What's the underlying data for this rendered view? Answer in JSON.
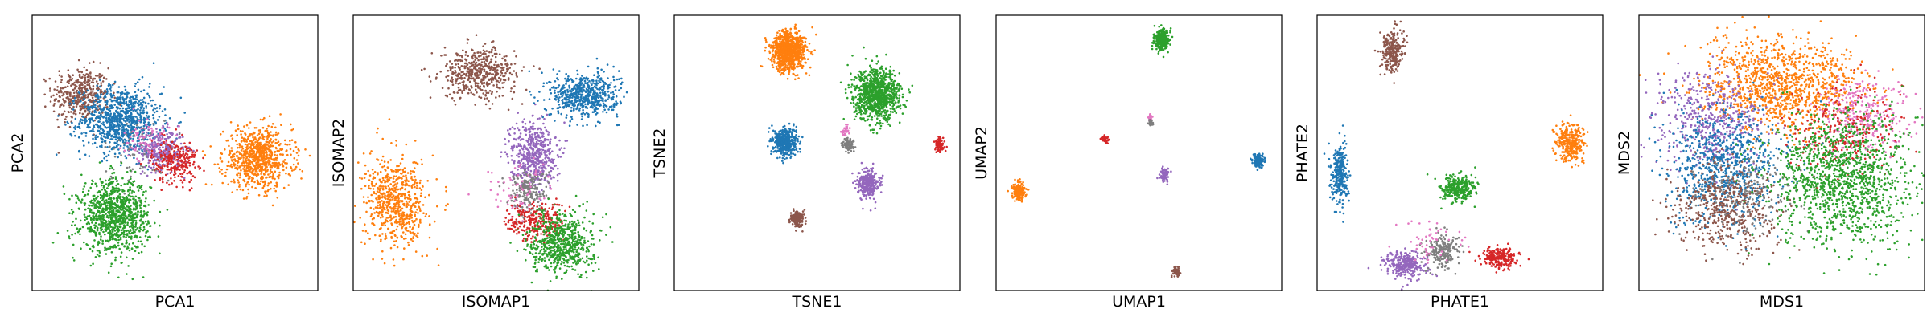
{
  "figure": {
    "colors": [
      "#1f77b4",
      "#ff7f0e",
      "#2ca02c",
      "#d62728",
      "#9467bd",
      "#8c564b",
      "#e377c2",
      "#7f7f7f"
    ]
  },
  "chart_data": [
    {
      "type": "scatter",
      "xlabel": "PCA1",
      "ylabel": "PCA2",
      "xlim": [
        0,
        1
      ],
      "ylim": [
        0,
        1
      ],
      "grid": false,
      "series": [
        {
          "color": "#8c564b",
          "center": [
            0.17,
            0.71
          ],
          "spread": [
            0.05,
            0.05
          ],
          "count": 400
        },
        {
          "color": "#1f77b4",
          "center": [
            0.31,
            0.62
          ],
          "spread": [
            0.07,
            0.06
          ],
          "count": 900
        },
        {
          "color": "#9467bd",
          "center": [
            0.45,
            0.51
          ],
          "spread": [
            0.04,
            0.035
          ],
          "count": 350
        },
        {
          "color": "#d62728",
          "center": [
            0.5,
            0.47
          ],
          "spread": [
            0.04,
            0.04
          ],
          "count": 250
        },
        {
          "color": "#e377c2",
          "center": [
            0.4,
            0.55
          ],
          "spread": [
            0.04,
            0.04
          ],
          "count": 80
        },
        {
          "color": "#7f7f7f",
          "center": [
            0.37,
            0.5
          ],
          "spread": [
            0.06,
            0.06
          ],
          "count": 60
        },
        {
          "color": "#ff7f0e",
          "center": [
            0.79,
            0.48
          ],
          "spread": [
            0.06,
            0.055
          ],
          "count": 800
        },
        {
          "color": "#2ca02c",
          "center": [
            0.29,
            0.27
          ],
          "spread": [
            0.06,
            0.065
          ],
          "count": 1000
        }
      ]
    },
    {
      "type": "scatter",
      "xlabel": "ISOMAP1",
      "ylabel": "ISOMAP2",
      "xlim": [
        0,
        1
      ],
      "ylim": [
        0,
        1
      ],
      "grid": false,
      "series": [
        {
          "color": "#8c564b",
          "center": [
            0.44,
            0.79
          ],
          "spread": [
            0.065,
            0.045
          ],
          "count": 500
        },
        {
          "color": "#1f77b4",
          "center": [
            0.81,
            0.71
          ],
          "spread": [
            0.06,
            0.04
          ],
          "count": 600
        },
        {
          "color": "#9467bd",
          "center": [
            0.63,
            0.5
          ],
          "spread": [
            0.04,
            0.06
          ],
          "count": 500
        },
        {
          "color": "#7f7f7f",
          "center": [
            0.61,
            0.36
          ],
          "spread": [
            0.035,
            0.04
          ],
          "count": 200
        },
        {
          "color": "#e377c2",
          "center": [
            0.58,
            0.36
          ],
          "spread": [
            0.06,
            0.06
          ],
          "count": 70
        },
        {
          "color": "#d62728",
          "center": [
            0.64,
            0.25
          ],
          "spread": [
            0.05,
            0.035
          ],
          "count": 250
        },
        {
          "color": "#ff7f0e",
          "center": [
            0.15,
            0.32
          ],
          "spread": [
            0.055,
            0.08
          ],
          "count": 650
        },
        {
          "color": "#2ca02c",
          "center": [
            0.73,
            0.17
          ],
          "spread": [
            0.055,
            0.055
          ],
          "count": 650
        }
      ]
    },
    {
      "type": "scatter",
      "xlabel": "TSNE1",
      "ylabel": "TSNE2",
      "xlim": [
        0,
        1
      ],
      "ylim": [
        0,
        1
      ],
      "grid": false,
      "series": [
        {
          "color": "#ff7f0e",
          "center": [
            0.4,
            0.87
          ],
          "spread": [
            0.03,
            0.035
          ],
          "count": 900
        },
        {
          "color": "#2ca02c",
          "center": [
            0.71,
            0.71
          ],
          "spread": [
            0.04,
            0.045
          ],
          "count": 1000
        },
        {
          "color": "#1f77b4",
          "center": [
            0.39,
            0.54
          ],
          "spread": [
            0.02,
            0.025
          ],
          "count": 450
        },
        {
          "color": "#d62728",
          "center": [
            0.93,
            0.53
          ],
          "spread": [
            0.008,
            0.012
          ],
          "count": 90
        },
        {
          "color": "#7f7f7f",
          "center": [
            0.61,
            0.53
          ],
          "spread": [
            0.01,
            0.012
          ],
          "count": 90
        },
        {
          "color": "#e377c2",
          "center": [
            0.6,
            0.58
          ],
          "spread": [
            0.008,
            0.01
          ],
          "count": 30
        },
        {
          "color": "#9467bd",
          "center": [
            0.68,
            0.39
          ],
          "spread": [
            0.018,
            0.025
          ],
          "count": 300
        },
        {
          "color": "#8c564b",
          "center": [
            0.43,
            0.26
          ],
          "spread": [
            0.012,
            0.015
          ],
          "count": 150
        }
      ]
    },
    {
      "type": "scatter",
      "xlabel": "UMAP1",
      "ylabel": "UMAP2",
      "xlim": [
        0,
        1
      ],
      "ylim": [
        0,
        1
      ],
      "grid": false,
      "series": [
        {
          "color": "#2ca02c",
          "center": [
            0.58,
            0.91
          ],
          "spread": [
            0.013,
            0.018
          ],
          "count": 300
        },
        {
          "color": "#e377c2",
          "center": [
            0.54,
            0.63
          ],
          "spread": [
            0.003,
            0.008
          ],
          "count": 25
        },
        {
          "color": "#7f7f7f",
          "center": [
            0.54,
            0.61
          ],
          "spread": [
            0.004,
            0.005
          ],
          "count": 30
        },
        {
          "color": "#d62728",
          "center": [
            0.38,
            0.55
          ],
          "spread": [
            0.006,
            0.007
          ],
          "count": 40
        },
        {
          "color": "#1f77b4",
          "center": [
            0.92,
            0.47
          ],
          "spread": [
            0.01,
            0.012
          ],
          "count": 150
        },
        {
          "color": "#9467bd",
          "center": [
            0.59,
            0.42
          ],
          "spread": [
            0.008,
            0.011
          ],
          "count": 90
        },
        {
          "color": "#ff7f0e",
          "center": [
            0.08,
            0.36
          ],
          "spread": [
            0.011,
            0.016
          ],
          "count": 200
        },
        {
          "color": "#8c564b",
          "center": [
            0.63,
            0.07
          ],
          "spread": [
            0.006,
            0.008
          ],
          "count": 60
        }
      ]
    },
    {
      "type": "scatter",
      "xlabel": "PHATE1",
      "ylabel": "PHATE2",
      "xlim": [
        0,
        1
      ],
      "ylim": [
        0,
        1
      ],
      "grid": false,
      "series": [
        {
          "color": "#8c564b",
          "center": [
            0.26,
            0.87
          ],
          "spread": [
            0.02,
            0.04
          ],
          "count": 250
        },
        {
          "color": "#ff7f0e",
          "center": [
            0.89,
            0.54
          ],
          "spread": [
            0.025,
            0.035
          ],
          "count": 300
        },
        {
          "color": "#1f77b4",
          "center": [
            0.08,
            0.42
          ],
          "spread": [
            0.015,
            0.055
          ],
          "count": 300
        },
        {
          "color": "#2ca02c",
          "center": [
            0.49,
            0.37
          ],
          "spread": [
            0.03,
            0.025
          ],
          "count": 300
        },
        {
          "color": "#9467bd",
          "center": [
            0.31,
            0.09
          ],
          "spread": [
            0.035,
            0.025
          ],
          "count": 300
        },
        {
          "color": "#7f7f7f",
          "center": [
            0.44,
            0.14
          ],
          "spread": [
            0.03,
            0.03
          ],
          "count": 200
        },
        {
          "color": "#d62728",
          "center": [
            0.64,
            0.12
          ],
          "spread": [
            0.03,
            0.02
          ],
          "count": 250
        },
        {
          "color": "#e377c2",
          "center": [
            0.4,
            0.17
          ],
          "spread": [
            0.06,
            0.04
          ],
          "count": 50
        }
      ]
    },
    {
      "type": "scatter",
      "xlabel": "MDS1",
      "ylabel": "MDS2",
      "xlim": [
        0,
        1
      ],
      "ylim": [
        0,
        1
      ],
      "grid": false,
      "series": [
        {
          "color": "#ff7f0e",
          "center": [
            0.5,
            0.75
          ],
          "spread": [
            0.14,
            0.08
          ],
          "count": 1100
        },
        {
          "color": "#9467bd",
          "center": [
            0.25,
            0.62
          ],
          "spread": [
            0.09,
            0.09
          ],
          "count": 500
        },
        {
          "color": "#e377c2",
          "center": [
            0.78,
            0.64
          ],
          "spread": [
            0.08,
            0.07
          ],
          "count": 300
        },
        {
          "color": "#d62728",
          "center": [
            0.72,
            0.58
          ],
          "spread": [
            0.1,
            0.08
          ],
          "count": 250
        },
        {
          "color": "#1f77b4",
          "center": [
            0.3,
            0.45
          ],
          "spread": [
            0.1,
            0.1
          ],
          "count": 800
        },
        {
          "color": "#8c564b",
          "center": [
            0.3,
            0.3
          ],
          "spread": [
            0.09,
            0.08
          ],
          "count": 500
        },
        {
          "color": "#7f7f7f",
          "center": [
            0.38,
            0.35
          ],
          "spread": [
            0.1,
            0.08
          ],
          "count": 150
        },
        {
          "color": "#2ca02c",
          "center": [
            0.71,
            0.4
          ],
          "spread": [
            0.12,
            0.12
          ],
          "count": 1300
        }
      ]
    }
  ]
}
